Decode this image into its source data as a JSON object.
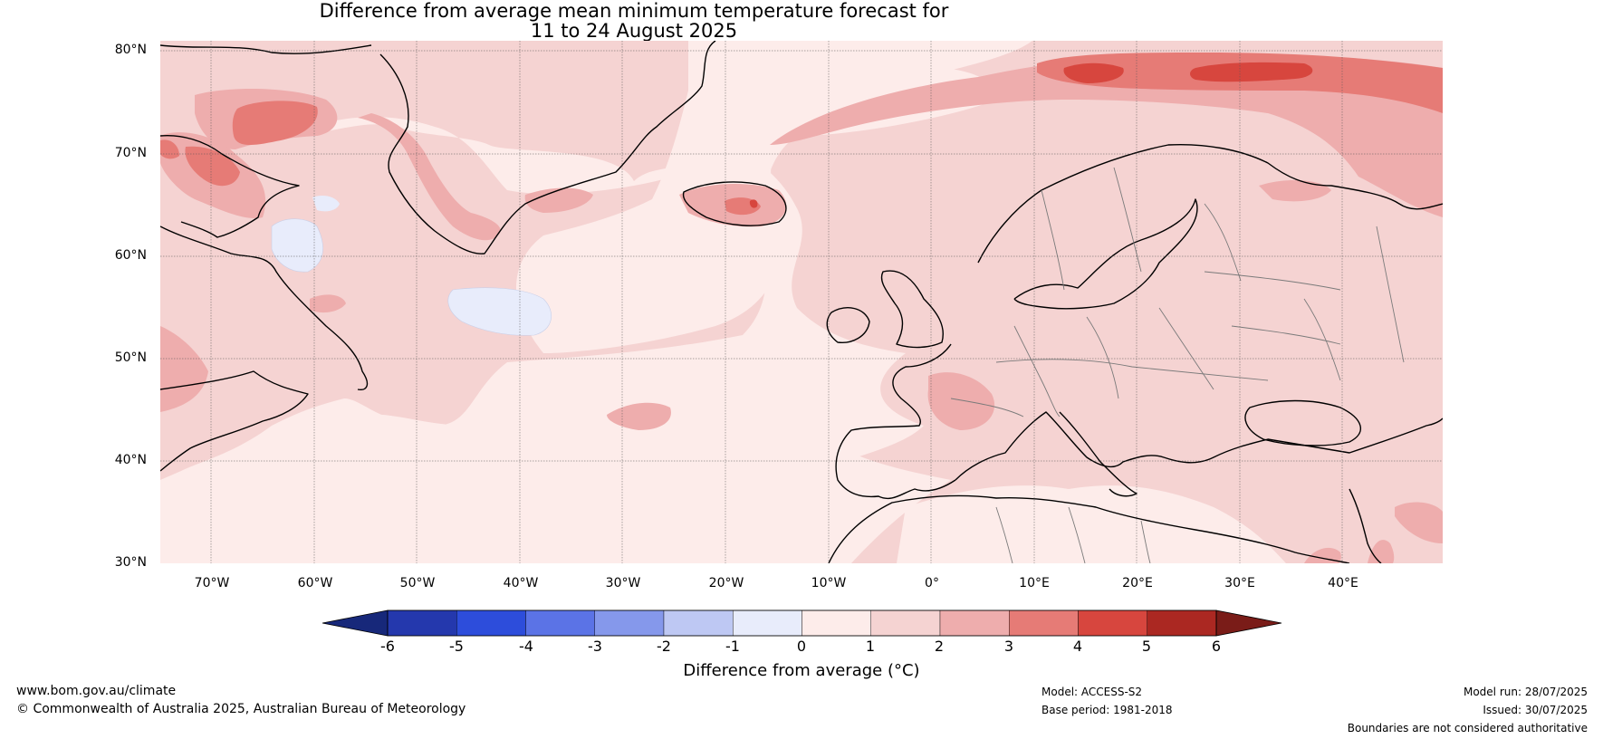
{
  "title_line1": "Difference from average mean minimum temperature forecast for",
  "title_line2": "11 to 24 August 2025",
  "lat_labels": [
    "80°N",
    "70°N",
    "60°N",
    "50°N",
    "40°N",
    "30°N"
  ],
  "lon_labels": [
    "70°W",
    "60°W",
    "50°W",
    "40°W",
    "30°W",
    "20°W",
    "10°W",
    "0°",
    "10°E",
    "20°E",
    "30°E",
    "40°E"
  ],
  "colorbar": {
    "ticks": [
      "-6",
      "-5",
      "-4",
      "-3",
      "-2",
      "-1",
      "0",
      "1",
      "2",
      "3",
      "4",
      "5",
      "6"
    ],
    "colors": [
      "#2438ad",
      "#2d4ddb",
      "#5b73e6",
      "#8598eb",
      "#bec8f3",
      "#e8ecfb",
      "#fdecea",
      "#f5d3d2",
      "#eeadad",
      "#e67b76",
      "#d7463e",
      "#ab2822"
    ],
    "under_color": "#17287a",
    "over_color": "#7a1c18",
    "label": "Difference from average (°C)"
  },
  "footer": {
    "url": "www.bom.gov.au/climate",
    "copyright": "© Commonwealth of Australia 2025, Australian Bureau of Meteorology",
    "model": "Model: ACCESS-S2",
    "base_period": "Base period: 1981-2018",
    "model_run": "Model run: 28/07/2025",
    "issued": "Issued: 30/07/2025",
    "disclaimer": "Boundaries are not considered authoritative"
  }
}
